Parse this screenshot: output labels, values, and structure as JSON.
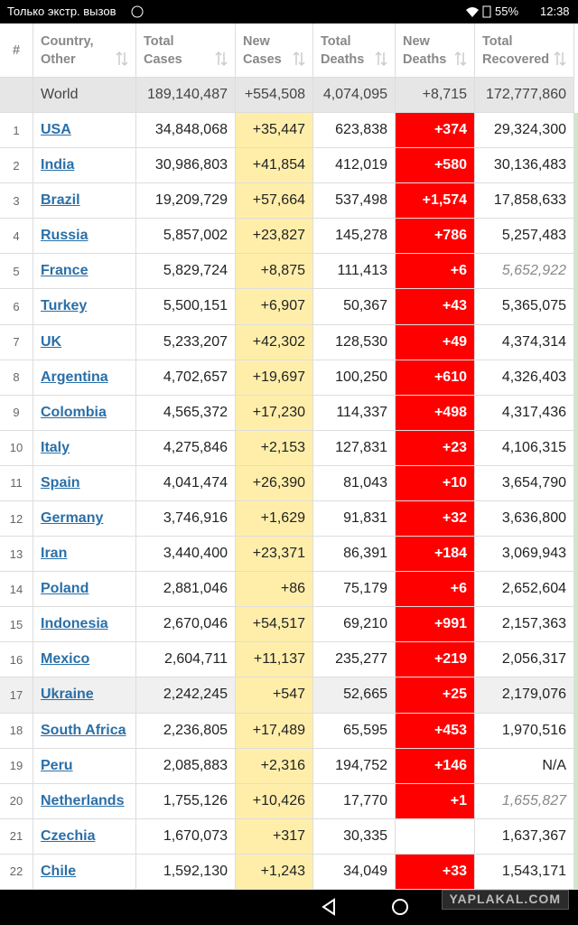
{
  "status_bar": {
    "carrier": "Только экстр. вызов",
    "battery": "55%",
    "time": "12:38"
  },
  "table": {
    "headers": [
      "#",
      "Country, Other",
      "Total Cases",
      "New Cases",
      "Total Deaths",
      "New Deaths",
      "Total Recovered"
    ],
    "world": [
      "World",
      "189,140,487",
      "+554,508",
      "4,074,095",
      "+8,715",
      "172,777,860"
    ],
    "rows": [
      {
        "cells": [
          "1",
          "USA",
          "34,848,068",
          "+35,447",
          "623,838",
          "+374",
          "29,324,300"
        ]
      },
      {
        "cells": [
          "2",
          "India",
          "30,986,803",
          "+41,854",
          "412,019",
          "+580",
          "30,136,483"
        ]
      },
      {
        "cells": [
          "3",
          "Brazil",
          "19,209,729",
          "+57,664",
          "537,498",
          "+1,574",
          "17,858,633"
        ]
      },
      {
        "cells": [
          "4",
          "Russia",
          "5,857,002",
          "+23,827",
          "145,278",
          "+786",
          "5,257,483"
        ]
      },
      {
        "cells": [
          "5",
          "France",
          "5,829,724",
          "+8,875",
          "111,413",
          "+6",
          "5,652,922"
        ],
        "recovered_estimated": true
      },
      {
        "cells": [
          "6",
          "Turkey",
          "5,500,151",
          "+6,907",
          "50,367",
          "+43",
          "5,365,075"
        ]
      },
      {
        "cells": [
          "7",
          "UK",
          "5,233,207",
          "+42,302",
          "128,530",
          "+49",
          "4,374,314"
        ]
      },
      {
        "cells": [
          "8",
          "Argentina",
          "4,702,657",
          "+19,697",
          "100,250",
          "+610",
          "4,326,403"
        ]
      },
      {
        "cells": [
          "9",
          "Colombia",
          "4,565,372",
          "+17,230",
          "114,337",
          "+498",
          "4,317,436"
        ]
      },
      {
        "cells": [
          "10",
          "Italy",
          "4,275,846",
          "+2,153",
          "127,831",
          "+23",
          "4,106,315"
        ]
      },
      {
        "cells": [
          "11",
          "Spain",
          "4,041,474",
          "+26,390",
          "81,043",
          "+10",
          "3,654,790"
        ]
      },
      {
        "cells": [
          "12",
          "Germany",
          "3,746,916",
          "+1,629",
          "91,831",
          "+32",
          "3,636,800"
        ]
      },
      {
        "cells": [
          "13",
          "Iran",
          "3,440,400",
          "+23,371",
          "86,391",
          "+184",
          "3,069,943"
        ]
      },
      {
        "cells": [
          "14",
          "Poland",
          "2,881,046",
          "+86",
          "75,179",
          "+6",
          "2,652,604"
        ]
      },
      {
        "cells": [
          "15",
          "Indonesia",
          "2,670,046",
          "+54,517",
          "69,210",
          "+991",
          "2,157,363"
        ]
      },
      {
        "cells": [
          "16",
          "Mexico",
          "2,604,711",
          "+11,137",
          "235,277",
          "+219",
          "2,056,317"
        ]
      },
      {
        "cells": [
          "17",
          "Ukraine",
          "2,242,245",
          "+547",
          "52,665",
          "+25",
          "2,179,076"
        ],
        "highlighted": true
      },
      {
        "cells": [
          "18",
          "South Africa",
          "2,236,805",
          "+17,489",
          "65,595",
          "+453",
          "1,970,516"
        ]
      },
      {
        "cells": [
          "19",
          "Peru",
          "2,085,883",
          "+2,316",
          "194,752",
          "+146",
          "N/A"
        ]
      },
      {
        "cells": [
          "20",
          "Netherlands",
          "1,755,126",
          "+10,426",
          "17,770",
          "+1",
          "1,655,827"
        ],
        "recovered_estimated": true
      },
      {
        "cells": [
          "21",
          "Czechia",
          "1,670,073",
          "+317",
          "30,335",
          null,
          "1,637,367"
        ]
      },
      {
        "cells": [
          "22",
          "Chile",
          "1,592,130",
          "+1,243",
          "34,049",
          "+33",
          "1,543,171"
        ]
      }
    ]
  },
  "watermark": "YAPLAKAL.COM"
}
